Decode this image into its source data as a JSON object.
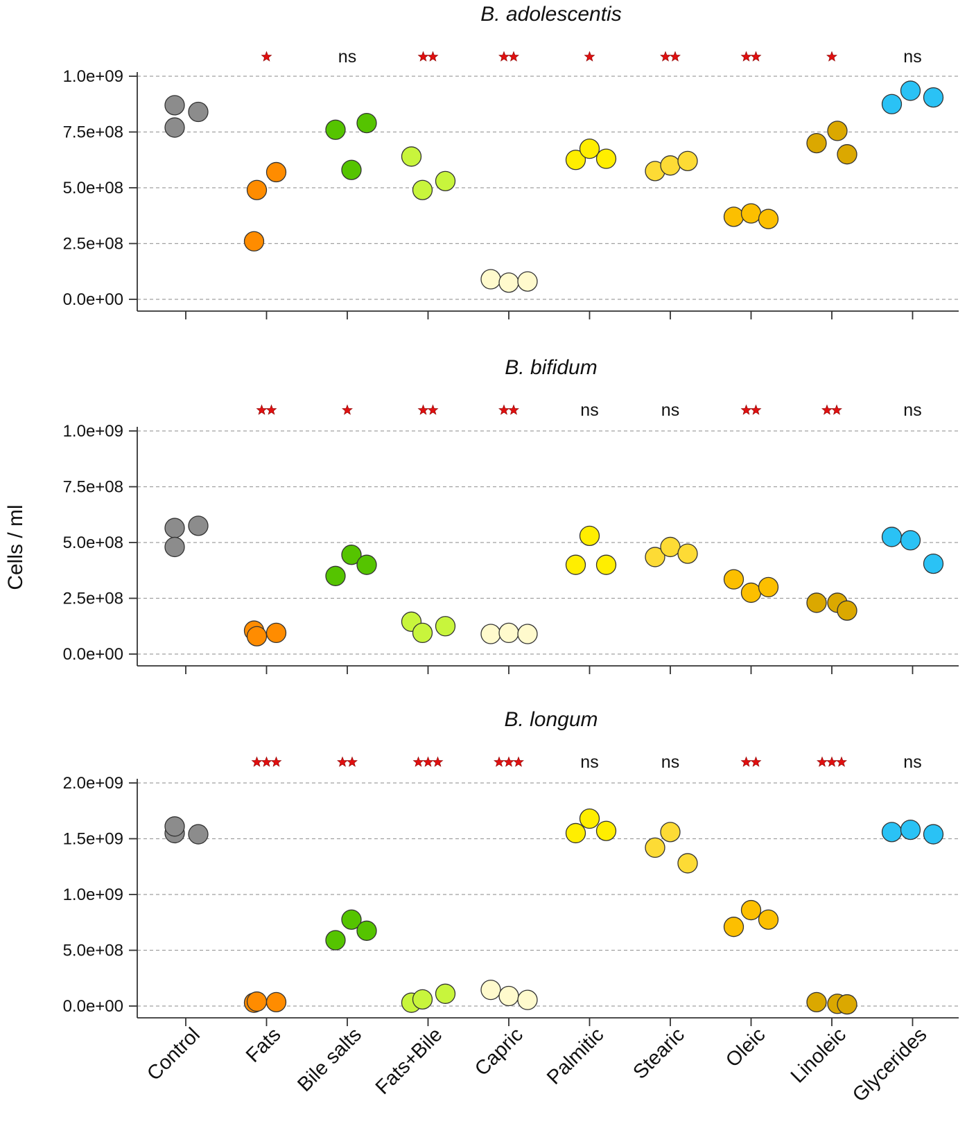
{
  "ylabel": "Cells / ml",
  "categories": [
    "Control",
    "Fats",
    "Bile salts",
    "Fats+Bile",
    "Capric",
    "Palmitic",
    "Stearic",
    "Oleic",
    "Linoleic",
    "Glycerides"
  ],
  "category_colors": [
    "#8c8c8c",
    "#ff8c00",
    "#55c400",
    "#c8f53c",
    "#fffacd",
    "#ffee00",
    "#fddb35",
    "#fcbf00",
    "#dba800",
    "#2ac2f5"
  ],
  "chart_data": [
    {
      "type": "scatter",
      "title": "B. adolescentis",
      "ylim": [
        0,
        1000000000.0
      ],
      "yticks": [
        "0.0e+00",
        "2.5e+08",
        "5.0e+08",
        "7.5e+08",
        "1.0e+09"
      ],
      "grid": true,
      "significance": [
        "",
        "*",
        "ns",
        "**",
        "**",
        "*",
        "**",
        "**",
        "*",
        "ns"
      ],
      "series": [
        {
          "category": "Control",
          "values": [
            870000000.0,
            770000000.0,
            840000000.0
          ]
        },
        {
          "category": "Fats",
          "values": [
            260000000.0,
            490000000.0,
            570000000.0
          ]
        },
        {
          "category": "Bile salts",
          "values": [
            760000000.0,
            580000000.0,
            790000000.0
          ]
        },
        {
          "category": "Fats+Bile",
          "values": [
            640000000.0,
            490000000.0,
            530000000.0
          ]
        },
        {
          "category": "Capric",
          "values": [
            90000000.0,
            75000000.0,
            80000000.0
          ]
        },
        {
          "category": "Palmitic",
          "values": [
            625000000.0,
            675000000.0,
            630000000.0
          ]
        },
        {
          "category": "Stearic",
          "values": [
            575000000.0,
            600000000.0,
            620000000.0
          ]
        },
        {
          "category": "Oleic",
          "values": [
            370000000.0,
            385000000.0,
            360000000.0
          ]
        },
        {
          "category": "Linoleic",
          "values": [
            700000000.0,
            755000000.0,
            650000000.0
          ]
        },
        {
          "category": "Glycerides",
          "values": [
            875000000.0,
            935000000.0,
            905000000.0
          ]
        }
      ]
    },
    {
      "type": "scatter",
      "title": "B. bifidum",
      "ylim": [
        0,
        1000000000.0
      ],
      "yticks": [
        "0.0e+00",
        "2.5e+08",
        "5.0e+08",
        "7.5e+08",
        "1.0e+09"
      ],
      "grid": true,
      "significance": [
        "",
        "**",
        "*",
        "**",
        "**",
        "ns",
        "ns",
        "**",
        "**",
        "ns"
      ],
      "series": [
        {
          "category": "Control",
          "values": [
            565000000.0,
            480000000.0,
            575000000.0
          ]
        },
        {
          "category": "Fats",
          "values": [
            105000000.0,
            80000000.0,
            95000000.0
          ]
        },
        {
          "category": "Bile salts",
          "values": [
            350000000.0,
            445000000.0,
            400000000.0
          ]
        },
        {
          "category": "Fats+Bile",
          "values": [
            145000000.0,
            95000000.0,
            125000000.0
          ]
        },
        {
          "category": "Capric",
          "values": [
            90000000.0,
            95000000.0,
            90000000.0
          ]
        },
        {
          "category": "Palmitic",
          "values": [
            400000000.0,
            530000000.0,
            400000000.0
          ]
        },
        {
          "category": "Stearic",
          "values": [
            435000000.0,
            480000000.0,
            450000000.0
          ]
        },
        {
          "category": "Oleic",
          "values": [
            335000000.0,
            275000000.0,
            300000000.0
          ]
        },
        {
          "category": "Linoleic",
          "values": [
            230000000.0,
            230000000.0,
            195000000.0
          ]
        },
        {
          "category": "Glycerides",
          "values": [
            525000000.0,
            510000000.0,
            405000000.0
          ]
        }
      ]
    },
    {
      "type": "scatter",
      "title": "B. longum",
      "ylim": [
        0,
        2000000000.0
      ],
      "yticks": [
        "0.0e+00",
        "5.0e+08",
        "1.0e+09",
        "1.5e+09",
        "2.0e+09"
      ],
      "grid": true,
      "significance": [
        "",
        "***",
        "**",
        "***",
        "***",
        "ns",
        "ns",
        "**",
        "***",
        "ns"
      ],
      "series": [
        {
          "category": "Control",
          "values": [
            1550000000.0,
            1610000000.0,
            1540000000.0
          ]
        },
        {
          "category": "Fats",
          "values": [
            30000000.0,
            40000000.0,
            35000000.0
          ]
        },
        {
          "category": "Bile salts",
          "values": [
            590000000.0,
            775000000.0,
            675000000.0
          ]
        },
        {
          "category": "Fats+Bile",
          "values": [
            30000000.0,
            60000000.0,
            110000000.0
          ]
        },
        {
          "category": "Capric",
          "values": [
            145000000.0,
            90000000.0,
            55000000.0
          ]
        },
        {
          "category": "Palmitic",
          "values": [
            1550000000.0,
            1680000000.0,
            1570000000.0
          ]
        },
        {
          "category": "Stearic",
          "values": [
            1420000000.0,
            1560000000.0,
            1280000000.0
          ]
        },
        {
          "category": "Oleic",
          "values": [
            710000000.0,
            860000000.0,
            775000000.0
          ]
        },
        {
          "category": "Linoleic",
          "values": [
            35000000.0,
            20000000.0,
            15000000.0
          ]
        },
        {
          "category": "Glycerides",
          "values": [
            1560000000.0,
            1580000000.0,
            1540000000.0
          ]
        }
      ]
    }
  ]
}
